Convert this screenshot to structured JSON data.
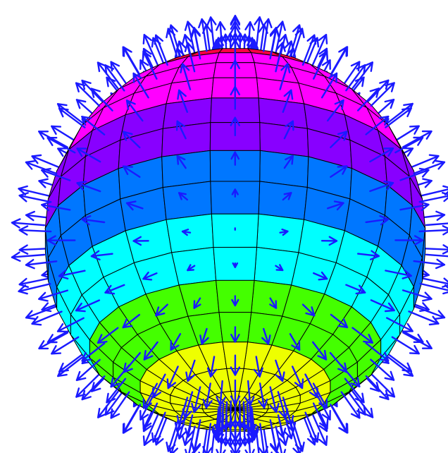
{
  "figure": {
    "kind": "sphere-normal-vector-field",
    "latitude_bands": 18,
    "longitude_segments": 24,
    "band_colors": [
      "#ff0044",
      "#ff0044",
      "#ff0044",
      "#ff0044",
      "#ff00ff",
      "#ff00ff",
      "#ff00ff",
      "#8800ff",
      "#8800ff",
      "#0077ff",
      "#0077ff",
      "#00ffff",
      "#00ffff",
      "#44ff00",
      "#44ff00",
      "#eeff00",
      "#eeff00",
      "#eeff00"
    ],
    "mesh_line_color": "#000000",
    "arrow_color": "#1a1aff",
    "background_color": "#ffffff",
    "view_tilt_degrees": 28
  }
}
